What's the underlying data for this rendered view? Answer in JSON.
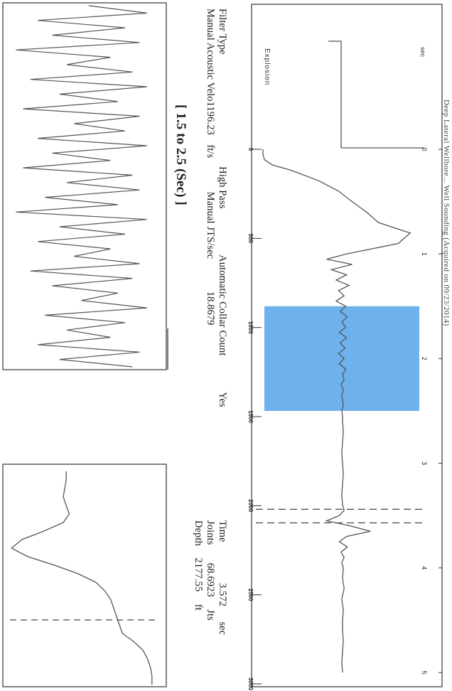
{
  "chart_data": {
    "type": "line",
    "orientation": "rotated-90-clockwise",
    "title": "Deep Lateral Wellbore... Well Sounding (Acquired on 09/23/2014)",
    "time_axis": {
      "label": "sec",
      "ticks": [
        "0",
        "1",
        "2",
        "3",
        "4",
        "5"
      ],
      "range_sec": [
        0,
        5
      ]
    },
    "depth_axis": {
      "ticks": [
        "0",
        "500",
        "1000",
        "1500",
        "2000",
        "2500",
        "3000"
      ],
      "range_ft": [
        0,
        3000
      ]
    },
    "explosion_label": "Explosion",
    "collar_band_sec": [
      1.5,
      2.5
    ],
    "marker_lines_sec": [
      3.44,
      3.57
    ],
    "trace": {
      "name": "acoustic trace",
      "time_sec": [
        0.0,
        0.05,
        0.1,
        0.15,
        0.2,
        0.3,
        0.4,
        0.5,
        0.6,
        0.7,
        0.8,
        0.9,
        1.0,
        1.05,
        1.1,
        1.15,
        1.2,
        1.25,
        1.3,
        1.35,
        1.4,
        1.45,
        1.5,
        1.55,
        1.6,
        1.65,
        1.7,
        1.75,
        1.8,
        1.85,
        1.9,
        1.95,
        2.0,
        2.05,
        2.1,
        2.15,
        2.2,
        2.25,
        2.3,
        2.35,
        2.4,
        2.45,
        2.5,
        2.55,
        2.6,
        2.7,
        2.8,
        2.9,
        3.0,
        3.1,
        3.2,
        3.3,
        3.4,
        3.45,
        3.5,
        3.55,
        3.6,
        3.65,
        3.7,
        3.75,
        3.8,
        3.85,
        3.9,
        3.95,
        4.0,
        4.1,
        4.2,
        4.3,
        4.4,
        4.5,
        4.6,
        4.7,
        4.8,
        4.9,
        5.0
      ],
      "amplitude": [
        0.0,
        0.0,
        0.02,
        0.12,
        0.35,
        0.7,
        0.95,
        1.12,
        1.3,
        1.45,
        1.85,
        1.7,
        1.05,
        0.8,
        1.12,
        0.86,
        1.05,
        0.92,
        1.08,
        0.95,
        1.02,
        0.92,
        1.04,
        0.97,
        1.06,
        0.99,
        1.04,
        0.96,
        1.05,
        0.97,
        1.03,
        0.95,
        1.02,
        0.96,
        1.04,
        1.0,
        1.02,
        0.98,
        1.01,
        0.99,
        1.0,
        1.01,
        0.99,
        1.0,
        1.0,
        1.01,
        1.0,
        0.99,
        1.0,
        1.01,
        1.0,
        0.99,
        1.0,
        1.02,
        0.96,
        0.8,
        1.1,
        1.35,
        1.05,
        0.96,
        1.06,
        0.98,
        1.02,
        0.99,
        1.01,
        1.0,
        1.02,
        0.99,
        1.01,
        1.0,
        1.0,
        1.01,
        1.0,
        0.99,
        1.0
      ]
    },
    "zoom_trace": {
      "range_label": "[ 1.5 to 2.5 (Sec) ]",
      "amplitude": [
        0.55,
        0.95,
        0.2,
        0.8,
        0.3,
        0.9,
        0.05,
        0.7,
        0.4,
        0.85,
        0.15,
        0.95,
        0.35,
        0.75,
        0.1,
        0.9,
        0.45,
        0.8,
        0.2,
        0.95,
        0.3,
        0.7,
        0.1,
        0.85,
        0.4,
        0.9,
        0.25,
        0.75,
        0.05,
        0.95,
        0.35,
        0.8,
        0.2,
        0.7,
        0.45,
        0.9,
        0.15,
        0.85,
        0.3,
        0.75,
        0.5,
        0.95,
        0.25,
        0.8,
        0.4,
        0.7,
        0.2,
        0.9,
        0.35,
        0.85
      ]
    },
    "pulse_trace": {
      "amplitude": [
        0.02,
        0.02,
        0.03,
        0.05,
        0.08,
        0.14,
        0.22,
        0.24,
        0.26,
        0.28,
        0.3,
        0.34,
        0.4,
        0.52,
        0.68,
        0.86,
        0.97,
        0.9,
        0.75,
        0.62,
        0.58,
        0.6,
        0.62,
        0.61,
        0.6,
        0.6
      ]
    }
  },
  "info": {
    "filter_type_label": "Filter Type",
    "filter_type_value": "High Pass",
    "velocity_label": "Manual Acoustic Velo",
    "velocity_value": "1196.23",
    "velocity_unit": "ft/s",
    "collar_label": "Automatic Collar Count",
    "collar_value": "Yes",
    "jts_label": "Manual JTS/sec",
    "jts_value": "18.8679",
    "time_label": "Time",
    "time_value": "3.572",
    "time_unit": "sec",
    "joints_label": "Joints",
    "joints_value": "68.6923",
    "joints_unit": "Jts",
    "depth_label": "Depth",
    "depth_value": "2177.55",
    "depth_unit": "ft"
  },
  "colors": {
    "band": "#6db2ec",
    "trace": "#555555",
    "frame": "#333333"
  }
}
